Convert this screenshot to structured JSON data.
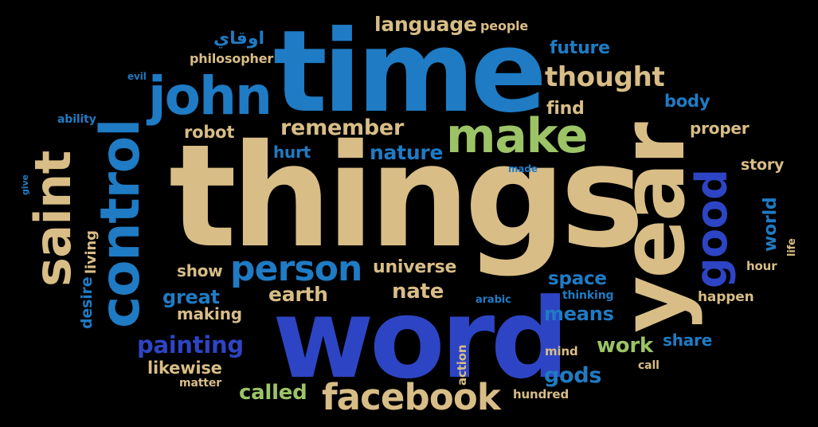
{
  "words": {
    "things": "things",
    "time": "time",
    "word": "word",
    "year": "year",
    "control": "control",
    "john": "john",
    "saint": "saint",
    "make": "make",
    "facebook": "facebook",
    "person": "person",
    "good": "good",
    "thought": "thought",
    "remember": "remember",
    "language": "language",
    "painting": "painting",
    "nature": "nature",
    "universe": "universe",
    "earth": "earth",
    "nate": "nate",
    "called": "called",
    "gods": "gods",
    "work": "work",
    "means": "means",
    "space": "space",
    "future": "future",
    "body": "body",
    "proper": "proper",
    "story": "story",
    "world": "world",
    "great": "great",
    "making": "making",
    "likewise": "likewise",
    "show": "show",
    "robot": "robot",
    "hurt": "hurt",
    "find": "find",
    "people": "people",
    "philosopher": "philosopher",
    "arabic_script": "اوقاي",
    "evil": "evil",
    "ability": "ability",
    "give": "give",
    "living": "living",
    "desire": "desire",
    "made": "made",
    "matter": "matter",
    "action": "action",
    "arabic": "arabic",
    "thinking": "thinking",
    "happen": "happen",
    "hour": "hour",
    "life": "life",
    "share": "share",
    "mind": "mind",
    "call": "call",
    "hundred": "hundred"
  },
  "colors": {
    "background": "#000000",
    "tan": "#d8bd86",
    "blue": "#1f7bc4",
    "dark_blue": "#2d45c4",
    "green": "#9cc466",
    "sky_blue": "#4aa0d8"
  }
}
